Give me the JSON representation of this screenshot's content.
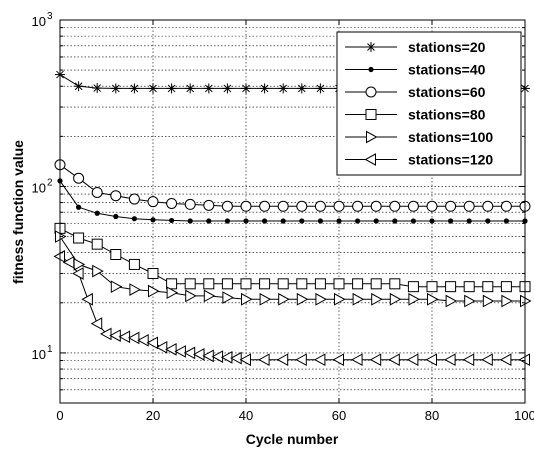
{
  "chart_data": {
    "type": "line",
    "title": "",
    "xlabel": "Cycle number",
    "ylabel": "fitness function value",
    "xlim": [
      0,
      100
    ],
    "ylim": [
      5,
      1000
    ],
    "yscale": "log",
    "grid": true,
    "legend_position": "top-right",
    "xticks": [
      0,
      20,
      40,
      60,
      80,
      100
    ],
    "xtick_labels": [
      "0",
      "20",
      "40",
      "60",
      "80",
      "100"
    ],
    "ytick_labels": [
      {
        "base": "10",
        "exp": "1",
        "value": 10
      },
      {
        "base": "10",
        "exp": "2",
        "value": 100
      },
      {
        "base": "10",
        "exp": "3",
        "value": 1000
      }
    ],
    "series": [
      {
        "name": "stations=20",
        "marker": "star",
        "x": [
          0,
          4,
          8,
          12,
          16,
          20,
          24,
          28,
          32,
          36,
          40,
          44,
          48,
          52,
          56,
          60,
          64,
          68,
          72,
          76,
          80,
          84,
          88,
          92,
          96,
          100
        ],
        "y": [
          470,
          400,
          390,
          388,
          388,
          388,
          388,
          388,
          388,
          388,
          388,
          388,
          388,
          388,
          388,
          388,
          388,
          388,
          388,
          388,
          388,
          388,
          388,
          388,
          388,
          388
        ]
      },
      {
        "name": "stations=40",
        "marker": "dot",
        "x": [
          0,
          4,
          8,
          12,
          16,
          20,
          24,
          28,
          32,
          36,
          40,
          44,
          48,
          52,
          56,
          60,
          64,
          68,
          72,
          76,
          80,
          84,
          88,
          92,
          96,
          100
        ],
        "y": [
          108,
          75,
          69,
          66,
          64,
          63,
          62.5,
          62,
          62,
          62,
          62,
          62,
          62,
          62,
          62,
          62,
          62,
          62,
          62,
          62,
          62,
          62,
          62,
          62,
          62,
          62
        ]
      },
      {
        "name": "stations=60",
        "marker": "circle",
        "x": [
          0,
          4,
          8,
          12,
          16,
          20,
          24,
          28,
          32,
          36,
          40,
          44,
          48,
          52,
          56,
          60,
          64,
          68,
          72,
          76,
          80,
          84,
          88,
          92,
          96,
          100
        ],
        "y": [
          135,
          112,
          92,
          88,
          84,
          81,
          79,
          78,
          77,
          76,
          76,
          76,
          76,
          76,
          76,
          76,
          76,
          76,
          76,
          76,
          76,
          76,
          76,
          76,
          76,
          76
        ]
      },
      {
        "name": "stations=80",
        "marker": "square",
        "x": [
          0,
          4,
          8,
          12,
          16,
          20,
          24,
          28,
          32,
          36,
          40,
          44,
          48,
          52,
          56,
          60,
          64,
          68,
          72,
          76,
          80,
          84,
          88,
          92,
          96,
          100
        ],
        "y": [
          56,
          49,
          45,
          39,
          34,
          30,
          26,
          26,
          26,
          26,
          26,
          26,
          26,
          26,
          26,
          26,
          26,
          26,
          26,
          25,
          25,
          25,
          25,
          25,
          25,
          25
        ]
      },
      {
        "name": "stations=100",
        "marker": "triangle-right",
        "x": [
          0,
          4,
          8,
          12,
          16,
          20,
          24,
          28,
          32,
          36,
          40,
          44,
          48,
          52,
          56,
          60,
          64,
          68,
          72,
          76,
          80,
          84,
          88,
          92,
          96,
          100
        ],
        "y": [
          50,
          34,
          31,
          25,
          24,
          23.5,
          23,
          22,
          22,
          21.5,
          21,
          21,
          21,
          21,
          21,
          21,
          21,
          21,
          21,
          21,
          21,
          20.5,
          20.5,
          20.5,
          20.5,
          20.5
        ]
      },
      {
        "name": "stations=120",
        "marker": "triangle-left",
        "x": [
          0,
          2,
          4,
          6,
          8,
          10,
          12,
          14,
          16,
          18,
          20,
          22,
          24,
          26,
          28,
          30,
          32,
          34,
          36,
          38,
          40,
          44,
          48,
          52,
          56,
          60,
          64,
          68,
          72,
          76,
          80,
          84,
          88,
          92,
          96,
          100
        ],
        "y": [
          38,
          35,
          30,
          21,
          15,
          13,
          12.7,
          12.5,
          12.3,
          11.9,
          11.5,
          10.8,
          10.5,
          10.2,
          10,
          9.8,
          9.6,
          9.5,
          9.4,
          9.3,
          9.1,
          9.1,
          9.1,
          9.1,
          9.1,
          9.1,
          9.1,
          9.1,
          9.1,
          9.1,
          9.1,
          9.1,
          9.1,
          9.1,
          9.1,
          9.1
        ]
      }
    ]
  }
}
